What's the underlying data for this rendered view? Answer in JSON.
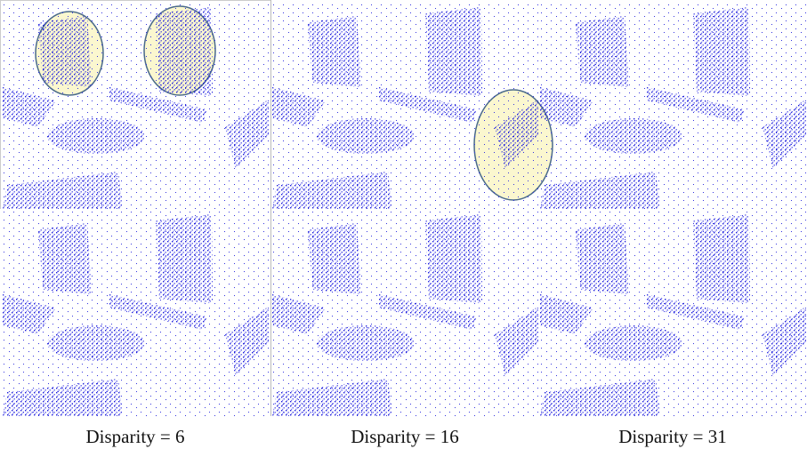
{
  "captions": [
    "Disparity = 6",
    "Disparity = 16",
    "Disparity = 31"
  ]
}
